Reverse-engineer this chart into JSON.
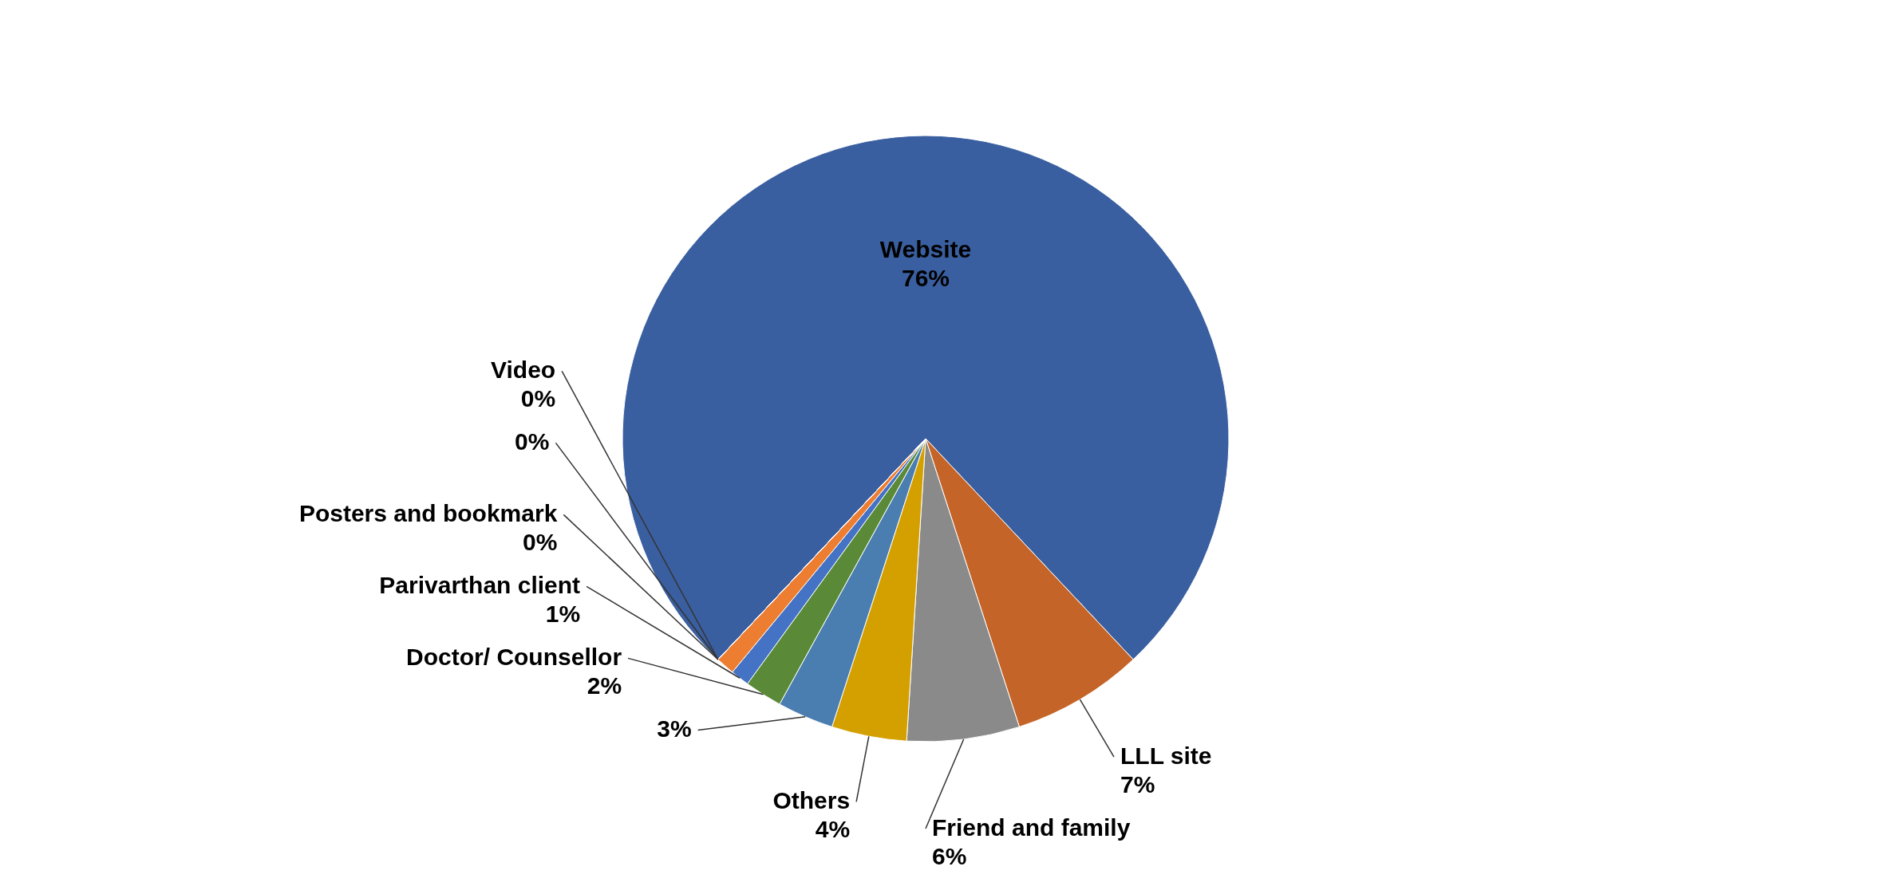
{
  "chart_data": {
    "type": "pie",
    "categories": [
      "Website",
      "LLL site",
      "Friend and family",
      "Others",
      null,
      "Doctor/ Counsellor",
      "Parivarthan client",
      null,
      "Posters and bookmark",
      null,
      "Video"
    ],
    "values": [
      76,
      7,
      6,
      4,
      3,
      2,
      1,
      1,
      0,
      0,
      0
    ],
    "value_labels": [
      "76%",
      "7%",
      "6%",
      "4%",
      "3%",
      "2%",
      "1%",
      null,
      "0%",
      "0%",
      "0%"
    ],
    "colors": [
      "#3a5fa0",
      "#c56428",
      "#8a8a8a",
      "#d4a000",
      "#4a7eb0",
      "#5a8a38",
      "#4472c4",
      "#ed7d31",
      "#a5a5a5",
      "#ffc000",
      "#70ad47"
    ]
  }
}
